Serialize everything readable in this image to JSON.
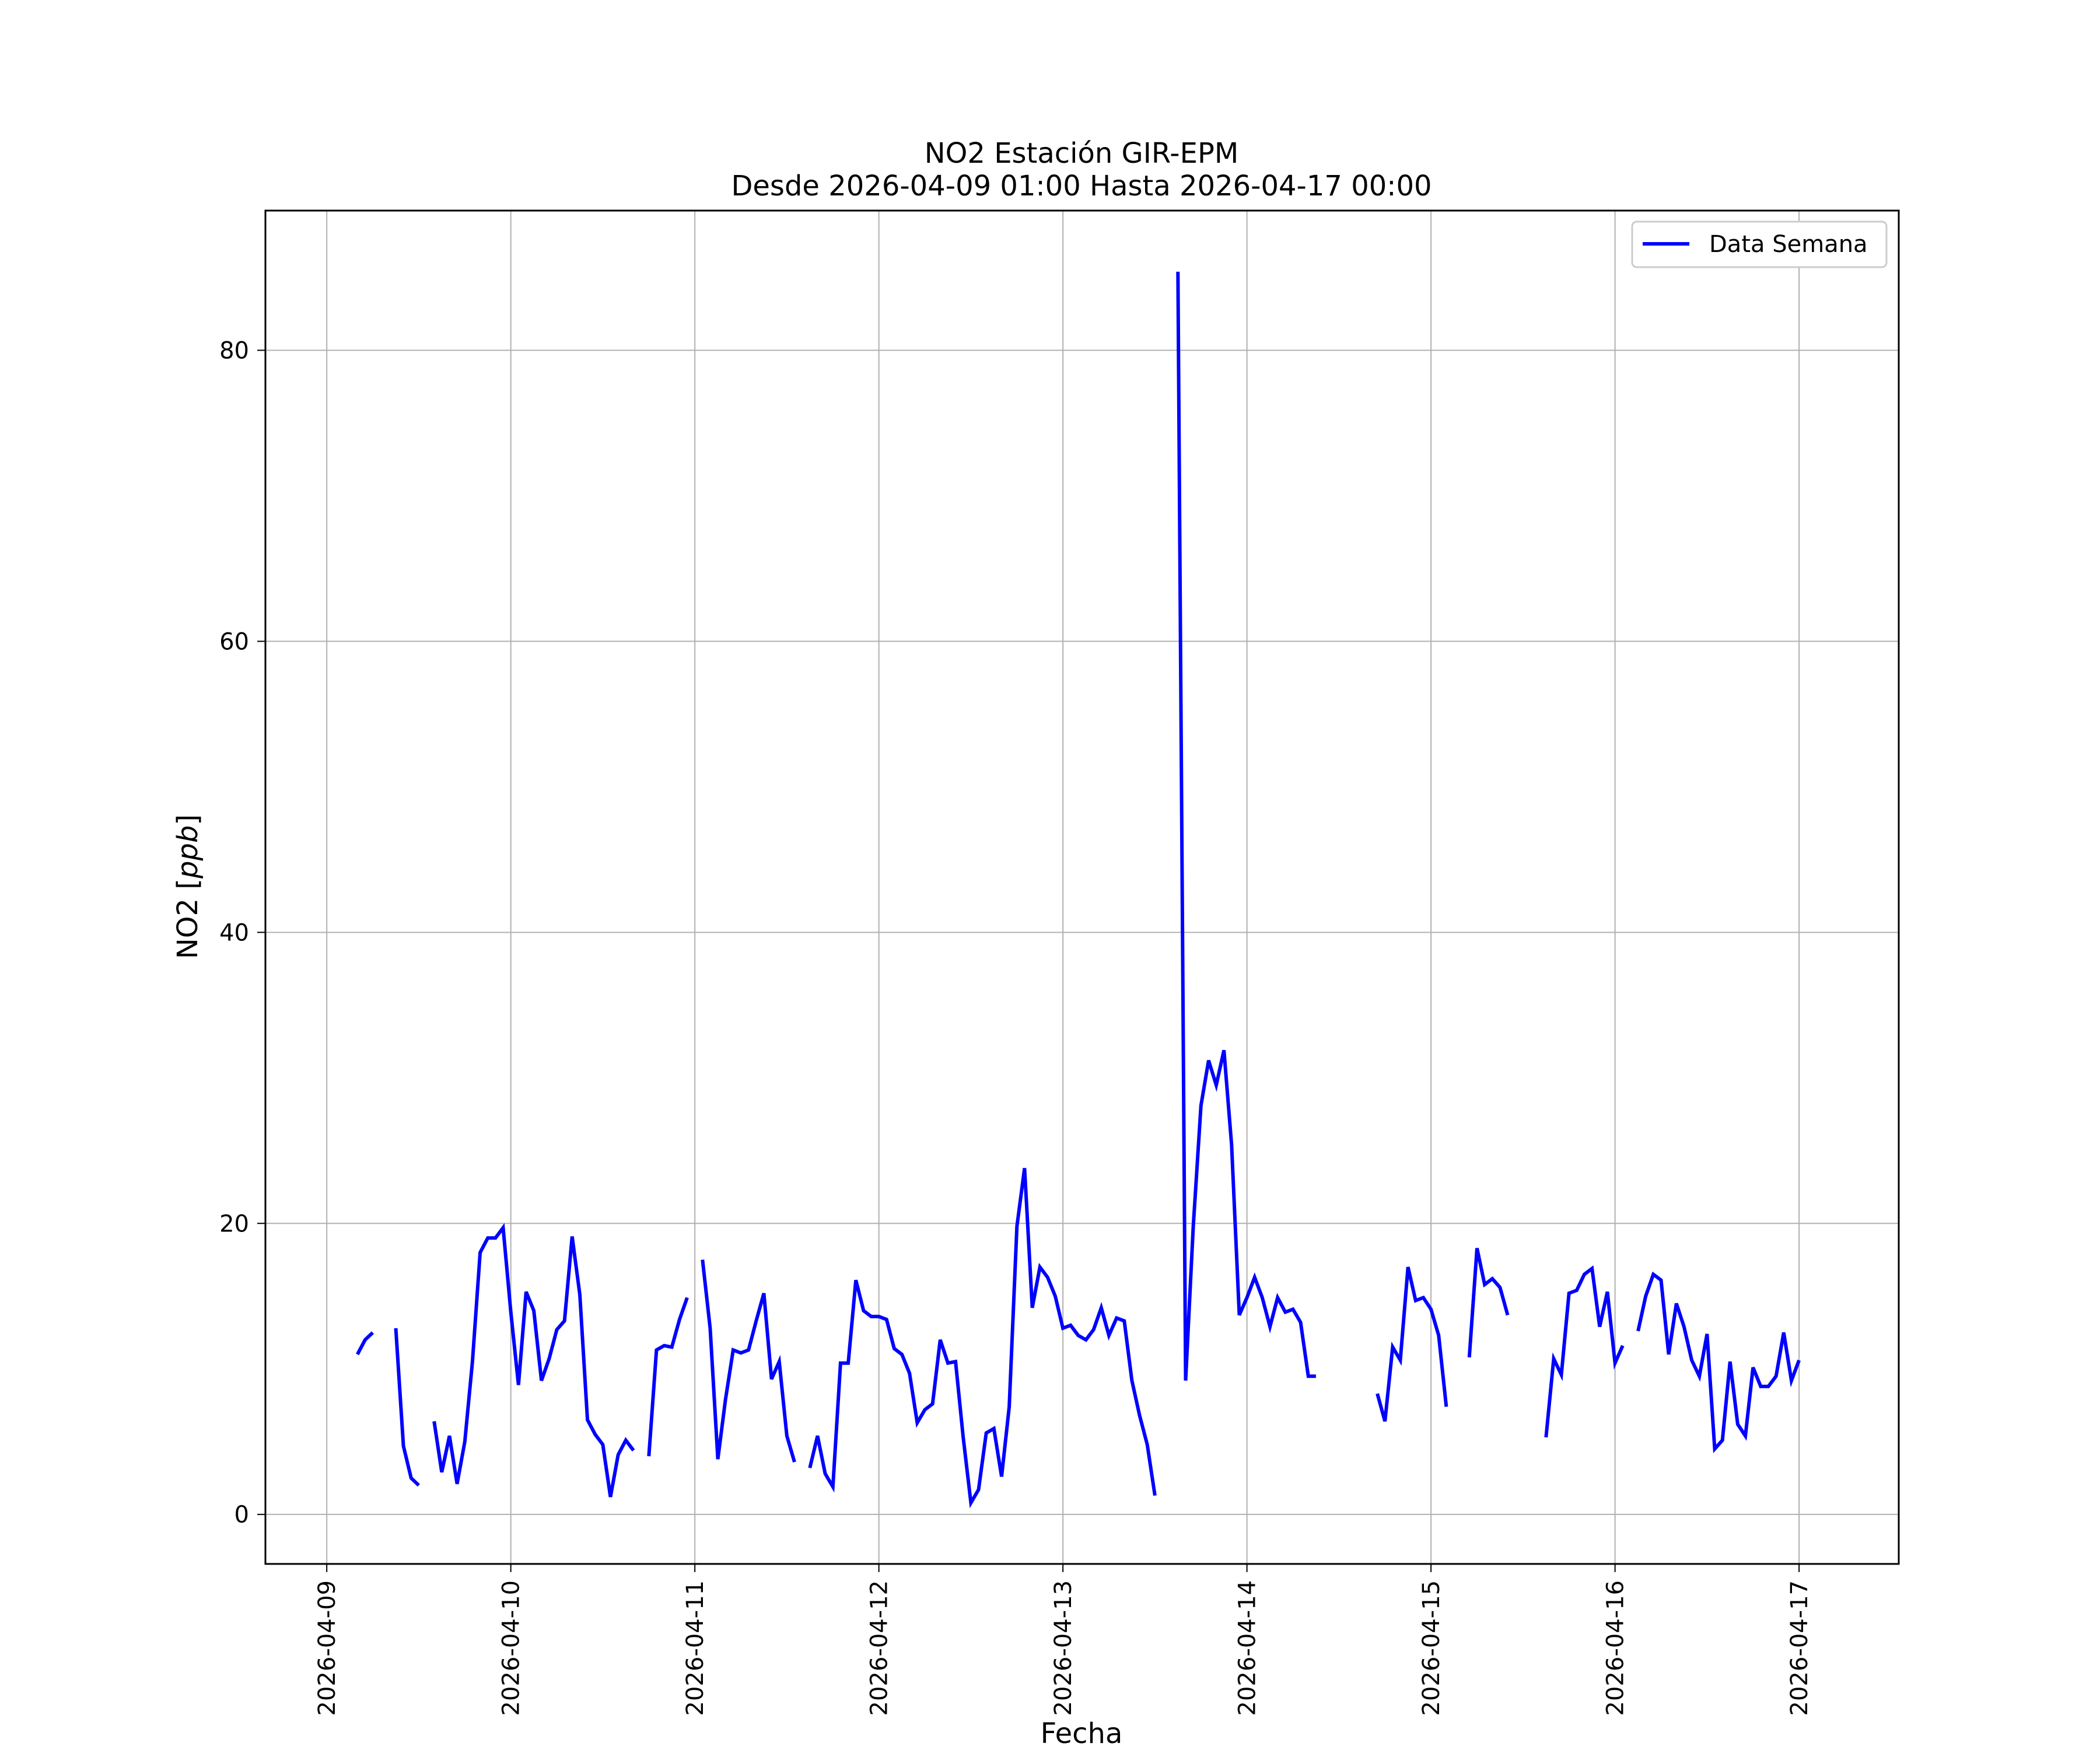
{
  "chart_data": {
    "type": "line",
    "title": "NO2 Estación GIR-EPM",
    "subtitle": "Desde 2026-04-09 01:00 Hasta 2026-04-17 00:00",
    "xlabel": "Fecha",
    "ylabel_main": "NO2 [",
    "ylabel_unit": "ppb",
    "ylabel_close": "]",
    "x_ticks": [
      "2026-04-09",
      "2026-04-10",
      "2026-04-11",
      "2026-04-12",
      "2026-04-13",
      "2026-04-14",
      "2026-04-15",
      "2026-04-16",
      "2026-04-17"
    ],
    "y_ticks": [
      0,
      20,
      40,
      60,
      80
    ],
    "xlim": [
      "2026-04-08 16:00",
      "2026-04-17 13:00"
    ],
    "ylim": [
      -3.4,
      89.6
    ],
    "grid": true,
    "legend_position": "top-right",
    "series": [
      {
        "name": "Data Semana",
        "color": "#0000ff",
        "segments": [
          [
            [
              "2026-04-09 04:00",
              11.0
            ],
            [
              "2026-04-09 05:00",
              12.0
            ],
            [
              "2026-04-09 06:00",
              12.5
            ]
          ],
          [
            [
              "2026-04-09 09:00",
              12.8
            ],
            [
              "2026-04-09 10:00",
              4.7
            ],
            [
              "2026-04-09 11:00",
              2.5
            ],
            [
              "2026-04-09 12:00",
              2.0
            ]
          ],
          [
            [
              "2026-04-09 14:00",
              6.4
            ],
            [
              "2026-04-09 15:00",
              2.9
            ],
            [
              "2026-04-09 16:00",
              5.4
            ],
            [
              "2026-04-09 17:00",
              2.1
            ],
            [
              "2026-04-09 18:00",
              5.0
            ],
            [
              "2026-04-09 19:00",
              10.5
            ],
            [
              "2026-04-09 20:00",
              18.0
            ],
            [
              "2026-04-09 21:00",
              19.0
            ],
            [
              "2026-04-09 22:00",
              19.0
            ],
            [
              "2026-04-09 23:00",
              19.7
            ],
            [
              "2026-04-10 00:00",
              13.9
            ],
            [
              "2026-04-10 01:00",
              8.9
            ],
            [
              "2026-04-10 02:00",
              15.3
            ],
            [
              "2026-04-10 03:00",
              14.0
            ],
            [
              "2026-04-10 04:00",
              9.2
            ],
            [
              "2026-04-10 05:00",
              10.7
            ],
            [
              "2026-04-10 06:00",
              12.7
            ],
            [
              "2026-04-10 07:00",
              13.3
            ],
            [
              "2026-04-10 08:00",
              19.1
            ],
            [
              "2026-04-10 09:00",
              15.1
            ],
            [
              "2026-04-10 10:00",
              6.5
            ],
            [
              "2026-04-10 11:00",
              5.5
            ],
            [
              "2026-04-10 12:00",
              4.8
            ],
            [
              "2026-04-10 13:00",
              1.2
            ],
            [
              "2026-04-10 14:00",
              4.1
            ],
            [
              "2026-04-10 15:00",
              5.1
            ],
            [
              "2026-04-10 16:00",
              4.4
            ]
          ],
          [
            [
              "2026-04-10 18:00",
              4.0
            ],
            [
              "2026-04-10 19:00",
              11.3
            ],
            [
              "2026-04-10 20:00",
              11.6
            ],
            [
              "2026-04-10 21:00",
              11.5
            ],
            [
              "2026-04-10 22:00",
              13.4
            ],
            [
              "2026-04-10 23:00",
              14.9
            ]
          ],
          [
            [
              "2026-04-11 01:00",
              17.5
            ],
            [
              "2026-04-11 02:00",
              12.8
            ],
            [
              "2026-04-11 03:00",
              3.8
            ],
            [
              "2026-04-11 04:00",
              7.9
            ],
            [
              "2026-04-11 05:00",
              11.3
            ],
            [
              "2026-04-11 06:00",
              11.1
            ],
            [
              "2026-04-11 07:00",
              11.3
            ],
            [
              "2026-04-11 08:00",
              13.3
            ],
            [
              "2026-04-11 09:00",
              15.2
            ],
            [
              "2026-04-11 10:00",
              9.3
            ],
            [
              "2026-04-11 11:00",
              10.5
            ],
            [
              "2026-04-11 12:00",
              5.4
            ],
            [
              "2026-04-11 13:00",
              3.6
            ]
          ],
          [
            [
              "2026-04-11 15:00",
              3.2
            ],
            [
              "2026-04-11 16:00",
              5.4
            ],
            [
              "2026-04-11 17:00",
              2.8
            ],
            [
              "2026-04-11 18:00",
              1.9
            ],
            [
              "2026-04-11 19:00",
              10.4
            ],
            [
              "2026-04-11 20:00",
              10.4
            ],
            [
              "2026-04-11 21:00",
              16.1
            ],
            [
              "2026-04-11 22:00",
              14.0
            ],
            [
              "2026-04-11 23:00",
              13.6
            ],
            [
              "2026-04-12 00:00",
              13.6
            ],
            [
              "2026-04-12 01:00",
              13.4
            ],
            [
              "2026-04-12 02:00",
              11.4
            ],
            [
              "2026-04-12 03:00",
              11.0
            ],
            [
              "2026-04-12 04:00",
              9.7
            ],
            [
              "2026-04-12 05:00",
              6.3
            ],
            [
              "2026-04-12 06:00",
              7.2
            ],
            [
              "2026-04-12 07:00",
              7.6
            ],
            [
              "2026-04-12 08:00",
              12.0
            ],
            [
              "2026-04-12 09:00",
              10.4
            ],
            [
              "2026-04-12 10:00",
              10.5
            ],
            [
              "2026-04-12 11:00",
              5.3
            ],
            [
              "2026-04-12 12:00",
              0.8
            ],
            [
              "2026-04-12 13:00",
              1.7
            ],
            [
              "2026-04-12 14:00",
              5.6
            ],
            [
              "2026-04-12 15:00",
              5.9
            ],
            [
              "2026-04-12 16:00",
              2.6
            ],
            [
              "2026-04-12 17:00",
              7.4
            ],
            [
              "2026-04-12 18:00",
              19.8
            ],
            [
              "2026-04-12 19:00",
              23.8
            ],
            [
              "2026-04-12 20:00",
              14.2
            ],
            [
              "2026-04-12 21:00",
              17.0
            ],
            [
              "2026-04-12 22:00",
              16.3
            ],
            [
              "2026-04-12 23:00",
              15.0
            ],
            [
              "2026-04-13 00:00",
              12.8
            ],
            [
              "2026-04-13 01:00",
              13.0
            ],
            [
              "2026-04-13 02:00",
              12.3
            ],
            [
              "2026-04-13 03:00",
              12.0
            ],
            [
              "2026-04-13 04:00",
              12.7
            ],
            [
              "2026-04-13 05:00",
              14.2
            ],
            [
              "2026-04-13 06:00",
              12.3
            ],
            [
              "2026-04-13 07:00",
              13.5
            ],
            [
              "2026-04-13 08:00",
              13.3
            ],
            [
              "2026-04-13 09:00",
              9.2
            ],
            [
              "2026-04-13 10:00",
              6.8
            ],
            [
              "2026-04-13 11:00",
              4.8
            ],
            [
              "2026-04-13 12:00",
              1.3
            ]
          ],
          [
            [
              "2026-04-13 15:00",
              85.4
            ],
            [
              "2026-04-13 16:00",
              9.2
            ],
            [
              "2026-04-13 17:00",
              19.8
            ],
            [
              "2026-04-13 18:00",
              28.1
            ],
            [
              "2026-04-13 19:00",
              31.2
            ],
            [
              "2026-04-13 20:00",
              29.5
            ],
            [
              "2026-04-13 21:00",
              31.9
            ],
            [
              "2026-04-13 22:00",
              25.4
            ],
            [
              "2026-04-13 23:00",
              13.7
            ],
            [
              "2026-04-14 00:00",
              14.9
            ],
            [
              "2026-04-14 01:00",
              16.3
            ],
            [
              "2026-04-14 02:00",
              14.9
            ],
            [
              "2026-04-14 03:00",
              12.9
            ],
            [
              "2026-04-14 04:00",
              14.9
            ],
            [
              "2026-04-14 05:00",
              13.9
            ],
            [
              "2026-04-14 06:00",
              14.1
            ],
            [
              "2026-04-14 07:00",
              13.2
            ],
            [
              "2026-04-14 08:00",
              9.5
            ],
            [
              "2026-04-14 09:00",
              9.5
            ]
          ],
          [
            [
              "2026-04-14 17:00",
              8.3
            ],
            [
              "2026-04-14 18:00",
              6.4
            ],
            [
              "2026-04-14 19:00",
              11.5
            ],
            [
              "2026-04-14 20:00",
              10.6
            ],
            [
              "2026-04-14 21:00",
              17.0
            ],
            [
              "2026-04-14 22:00",
              14.7
            ],
            [
              "2026-04-14 23:00",
              14.9
            ],
            [
              "2026-04-15 00:00",
              14.1
            ],
            [
              "2026-04-15 01:00",
              12.3
            ],
            [
              "2026-04-15 02:00",
              7.4
            ]
          ],
          [
            [
              "2026-04-15 05:00",
              10.8
            ],
            [
              "2026-04-15 06:00",
              18.3
            ],
            [
              "2026-04-15 07:00",
              15.8
            ],
            [
              "2026-04-15 08:00",
              16.2
            ],
            [
              "2026-04-15 09:00",
              15.6
            ],
            [
              "2026-04-15 10:00",
              13.7
            ]
          ],
          [
            [
              "2026-04-15 15:00",
              5.3
            ],
            [
              "2026-04-15 16:00",
              10.7
            ],
            [
              "2026-04-15 17:00",
              9.6
            ],
            [
              "2026-04-15 18:00",
              15.2
            ],
            [
              "2026-04-15 19:00",
              15.4
            ],
            [
              "2026-04-15 20:00",
              16.5
            ],
            [
              "2026-04-15 21:00",
              16.9
            ],
            [
              "2026-04-15 22:00",
              12.9
            ],
            [
              "2026-04-15 23:00",
              15.3
            ],
            [
              "2026-04-16 00:00",
              10.4
            ],
            [
              "2026-04-16 01:00",
              11.6
            ]
          ],
          [
            [
              "2026-04-16 03:00",
              12.6
            ],
            [
              "2026-04-16 04:00",
              15.0
            ],
            [
              "2026-04-16 05:00",
              16.5
            ],
            [
              "2026-04-16 06:00",
              16.1
            ],
            [
              "2026-04-16 07:00",
              11.0
            ],
            [
              "2026-04-16 08:00",
              14.5
            ],
            [
              "2026-04-16 09:00",
              12.9
            ],
            [
              "2026-04-16 10:00",
              10.6
            ],
            [
              "2026-04-16 11:00",
              9.5
            ],
            [
              "2026-04-16 12:00",
              12.4
            ],
            [
              "2026-04-16 13:00",
              4.5
            ],
            [
              "2026-04-16 14:00",
              5.1
            ],
            [
              "2026-04-16 15:00",
              10.5
            ],
            [
              "2026-04-16 16:00",
              6.2
            ],
            [
              "2026-04-16 17:00",
              5.4
            ],
            [
              "2026-04-16 18:00",
              10.1
            ],
            [
              "2026-04-16 19:00",
              8.8
            ],
            [
              "2026-04-16 20:00",
              8.8
            ],
            [
              "2026-04-16 21:00",
              9.5
            ],
            [
              "2026-04-16 22:00",
              12.5
            ],
            [
              "2026-04-16 23:00",
              9.2
            ],
            [
              "2026-04-17 00:00",
              10.6
            ]
          ]
        ]
      }
    ]
  }
}
